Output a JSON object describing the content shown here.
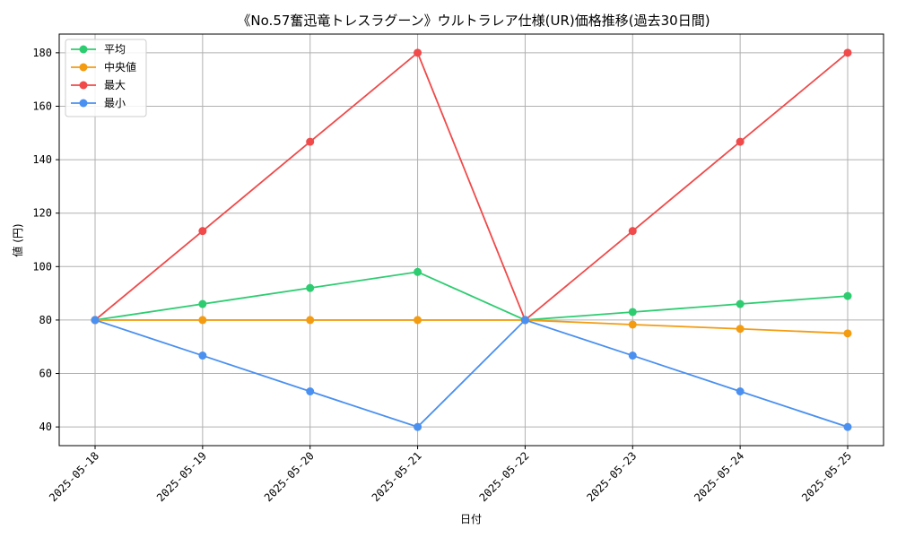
{
  "chart_data": {
    "type": "line",
    "title": "《No.57奮迅竜トレスラグーン》ウルトラレア仕様(UR)価格推移(過去30日間)",
    "xlabel": "日付",
    "ylabel": "値 (円)",
    "categories": [
      "2025-05-18",
      "2025-05-19",
      "2025-05-20",
      "2025-05-21",
      "2025-05-22",
      "2025-05-23",
      "2025-05-24",
      "2025-05-25"
    ],
    "ylim": [
      33,
      187
    ],
    "yticks": [
      40,
      60,
      80,
      100,
      120,
      140,
      160,
      180
    ],
    "grid": true,
    "legend_position": "top-left",
    "series": [
      {
        "name": "平均",
        "color": "#2ecc71",
        "values": [
          80,
          86,
          92,
          98,
          80,
          83,
          86,
          89
        ]
      },
      {
        "name": "中央値",
        "color": "#f39c12",
        "values": [
          80,
          80,
          80,
          80,
          80,
          78.3,
          76.7,
          75
        ]
      },
      {
        "name": "最大",
        "color": "#f04a4a",
        "values": [
          80,
          113.3,
          146.7,
          180,
          80,
          113.3,
          146.7,
          180
        ]
      },
      {
        "name": "最小",
        "color": "#4a90f0",
        "values": [
          80,
          66.7,
          53.3,
          40,
          80,
          66.7,
          53.3,
          40
        ]
      }
    ]
  }
}
